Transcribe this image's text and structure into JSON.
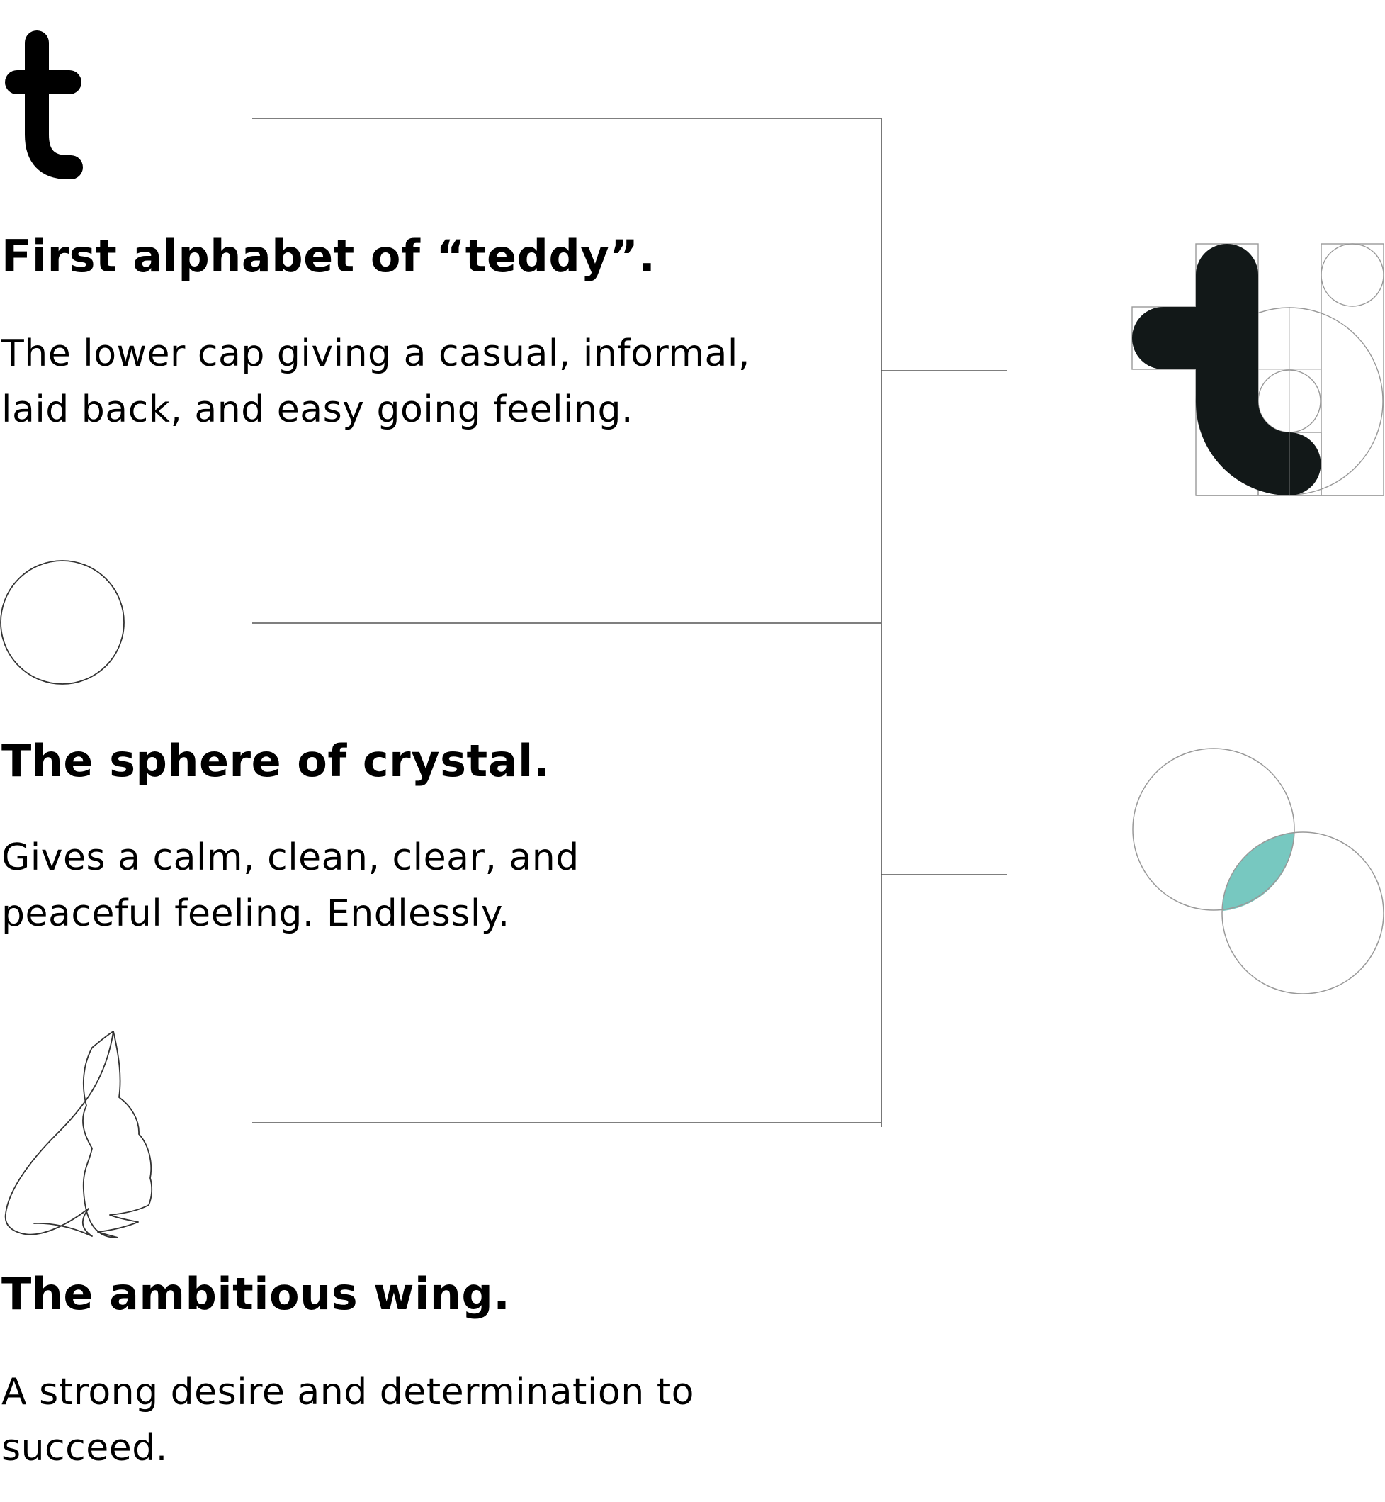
{
  "sections": [
    {
      "heading": "First alphabet of “teddy”.",
      "description": "The lower cap giving a casual, informal, laid back, and easy going feeling."
    },
    {
      "heading": "The sphere of crystal.",
      "description": "Gives a calm, clean, clear, and peaceful feeling. Endlessly."
    },
    {
      "heading": "The ambitious wing.",
      "description": "A strong desire and determination to succeed."
    }
  ],
  "colors": {
    "text": "#000000",
    "logo_fill": "#121818",
    "accent_teal": "#77c8c0",
    "line": "#555555",
    "construction_line": "#999999"
  },
  "icons": [
    "letter-t-icon",
    "circle-icon",
    "wing-icon",
    "t-logo-construction-icon",
    "overlapping-circles-icon"
  ]
}
